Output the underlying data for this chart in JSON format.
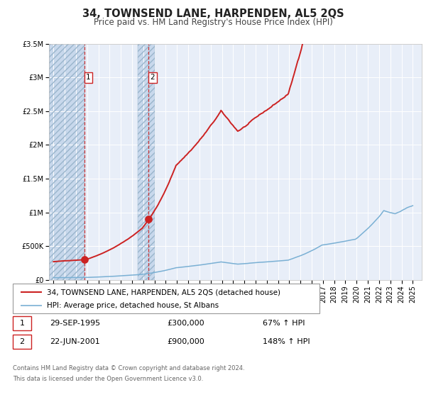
{
  "title": "34, TOWNSEND LANE, HARPENDEN, AL5 2QS",
  "subtitle": "Price paid vs. HM Land Registry's House Price Index (HPI)",
  "ylim": [
    0,
    3500000
  ],
  "xlim_start": 1992.6,
  "xlim_end": 2025.8,
  "background_color": "#ffffff",
  "plot_bg_color": "#e8eef8",
  "grid_color": "#ffffff",
  "hpi_color": "#7ab0d4",
  "price_color": "#cc2222",
  "sale1_year": 1995.75,
  "sale1_price": 300000,
  "sale2_year": 2001.47,
  "sale2_price": 900000,
  "legend_line1": "34, TOWNSEND LANE, HARPENDEN, AL5 2QS (detached house)",
  "legend_line2": "HPI: Average price, detached house, St Albans",
  "annotation1_date": "29-SEP-1995",
  "annotation1_price": "£300,000",
  "annotation1_hpi": "67% ↑ HPI",
  "annotation2_date": "22-JUN-2001",
  "annotation2_price": "£900,000",
  "annotation2_hpi": "148% ↑ HPI",
  "footer1": "Contains HM Land Registry data © Crown copyright and database right 2024.",
  "footer2": "This data is licensed under the Open Government Licence v3.0.",
  "title_fontsize": 10.5,
  "subtitle_fontsize": 8.5,
  "tick_fontsize": 7,
  "ytick_labels": [
    "£0",
    "£500K",
    "£1M",
    "£1.5M",
    "£2M",
    "£2.5M",
    "£3M",
    "£3.5M"
  ],
  "ytick_values": [
    0,
    500000,
    1000000,
    1500000,
    2000000,
    2500000,
    3000000,
    3500000
  ],
  "hatch_left_start": 1992.6,
  "hatch_left_end": 1995.75,
  "hatch_right_start": 2000.5,
  "hatch_right_end": 2002.0
}
